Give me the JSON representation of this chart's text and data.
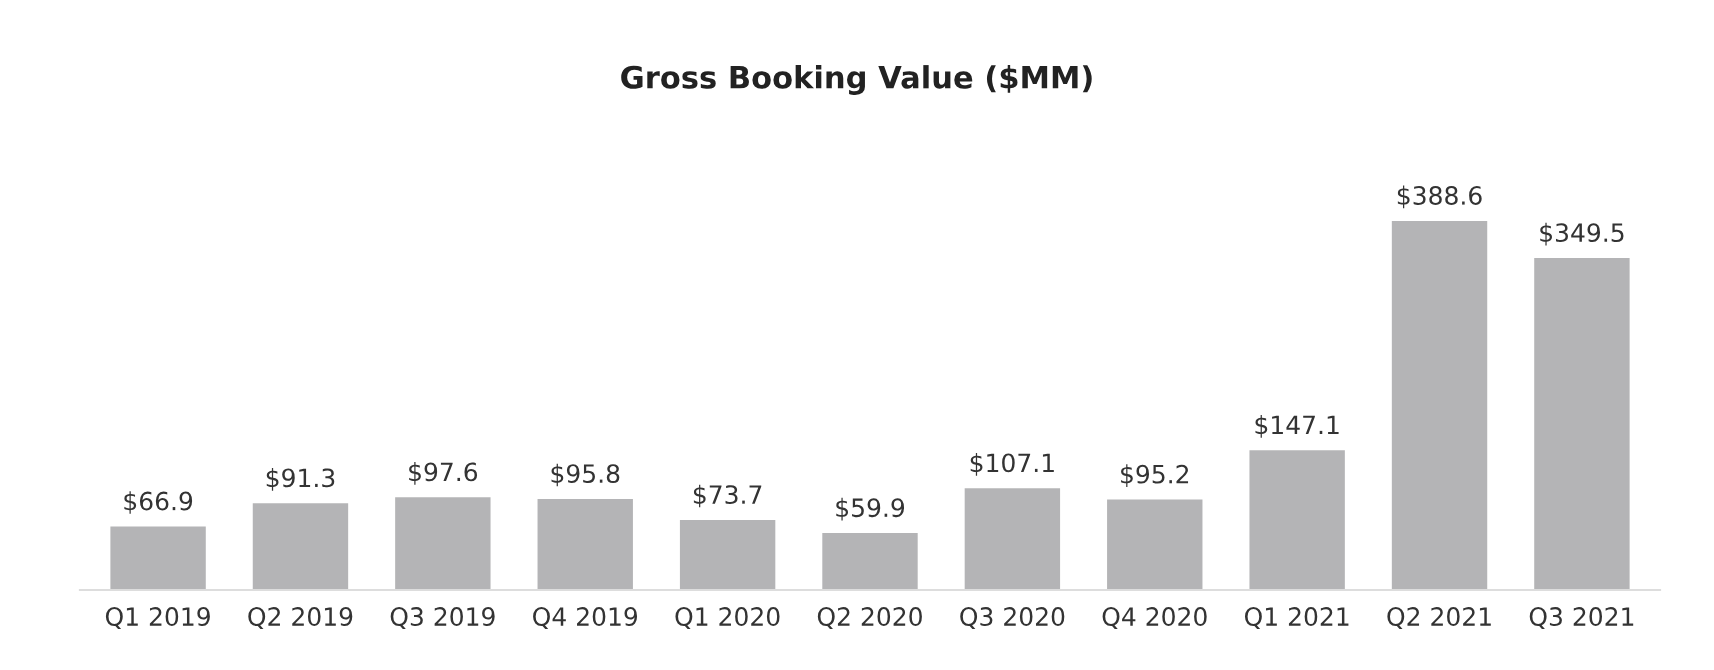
{
  "chart_data": {
    "type": "bar",
    "title": "Gross Booking Value ($MM)",
    "categories": [
      "Q1 2019",
      "Q2 2019",
      "Q3 2019",
      "Q4 2019",
      "Q1 2020",
      "Q2 2020",
      "Q3 2020",
      "Q4 2020",
      "Q1 2021",
      "Q2 2021",
      "Q3 2021"
    ],
    "values": [
      66.9,
      91.3,
      97.6,
      95.8,
      73.7,
      59.9,
      107.1,
      95.2,
      147.1,
      388.6,
      349.5
    ],
    "value_labels": [
      "$66.9",
      "$91.3",
      "$97.6",
      "$95.8",
      "$73.7",
      "$59.9",
      "$107.1",
      "$95.2",
      "$147.1",
      "$388.6",
      "$349.5"
    ],
    "color": "#b4b4b6",
    "grid": false,
    "legend": false
  }
}
